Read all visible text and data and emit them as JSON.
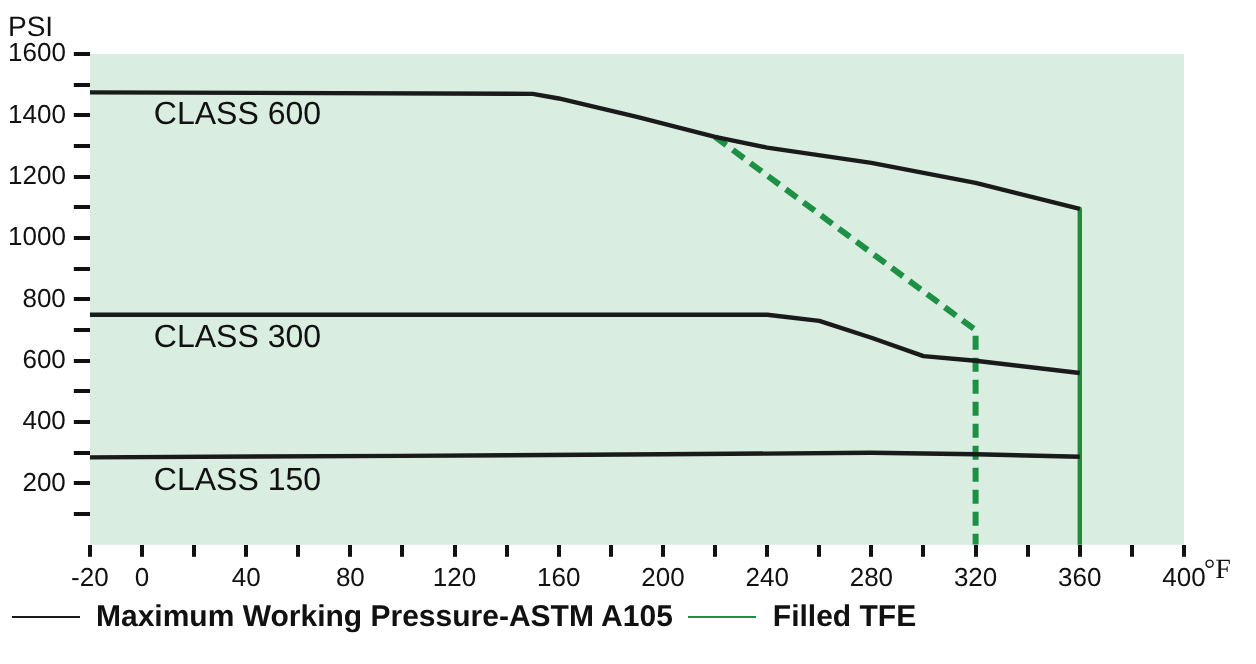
{
  "chart_data": {
    "type": "line",
    "xlabel": "°F",
    "ylabel": "PSI",
    "xlim": [
      -20,
      400
    ],
    "ylim": [
      0,
      1600
    ],
    "xticks": [
      -20,
      0,
      {
        "value": 20,
        "label": null
      },
      40,
      {
        "value": 60,
        "label": null
      },
      80,
      {
        "value": 100,
        "label": null
      },
      120,
      {
        "value": 140,
        "label": null
      },
      160,
      {
        "value": 180,
        "label": null
      },
      200,
      {
        "value": 220,
        "label": null
      },
      240,
      {
        "value": 260,
        "label": null
      },
      280,
      {
        "value": 300,
        "label": null
      },
      320,
      {
        "value": 340,
        "label": null
      },
      360,
      {
        "value": 380,
        "label": null
      },
      400
    ],
    "yticks": [
      {
        "value": 100,
        "label": null
      },
      200,
      {
        "value": 300,
        "label": null
      },
      400,
      {
        "value": 500,
        "label": null
      },
      600,
      {
        "value": 700,
        "label": null
      },
      800,
      {
        "value": 900,
        "label": null
      },
      1000,
      {
        "value": 1100,
        "label": null
      },
      1200,
      {
        "value": 1300,
        "label": null
      },
      1400,
      {
        "value": 1500,
        "label": null
      },
      1600
    ],
    "grid": false,
    "legend": "bottom",
    "marker": "none",
    "series": [
      {
        "name": "Maximum Working Pressure-ASTM A105",
        "color": "#1a1a1a",
        "x": [
          -20,
          150,
          160,
          190,
          220,
          240,
          280,
          320,
          360
        ],
        "values": [
          1475,
          1470,
          1455,
          1395,
          1330,
          1295,
          1245,
          1180,
          1095
        ]
      },
      {
        "color": "#1a1a1a",
        "x": [
          -20,
          240,
          260,
          280,
          300,
          320,
          360
        ],
        "values": [
          750,
          750,
          730,
          675,
          615,
          600,
          560
        ]
      },
      {
        "color": "#1a1a1a",
        "x": [
          -20,
          100,
          200,
          280,
          320,
          360
        ],
        "values": [
          285,
          290,
          295,
          300,
          295,
          287
        ]
      },
      {
        "name": "Filled TFE",
        "color": "#1e9045",
        "line_style": "dashed",
        "x": [
          220,
          320,
          320
        ],
        "values": [
          1330,
          700,
          0
        ]
      },
      {
        "color": "#1e8c3c",
        "x": [
          360,
          360
        ],
        "values": [
          1095,
          0
        ]
      }
    ],
    "annotations": [
      "CLASS 600",
      "CLASS 300",
      "CLASS 150"
    ]
  }
}
